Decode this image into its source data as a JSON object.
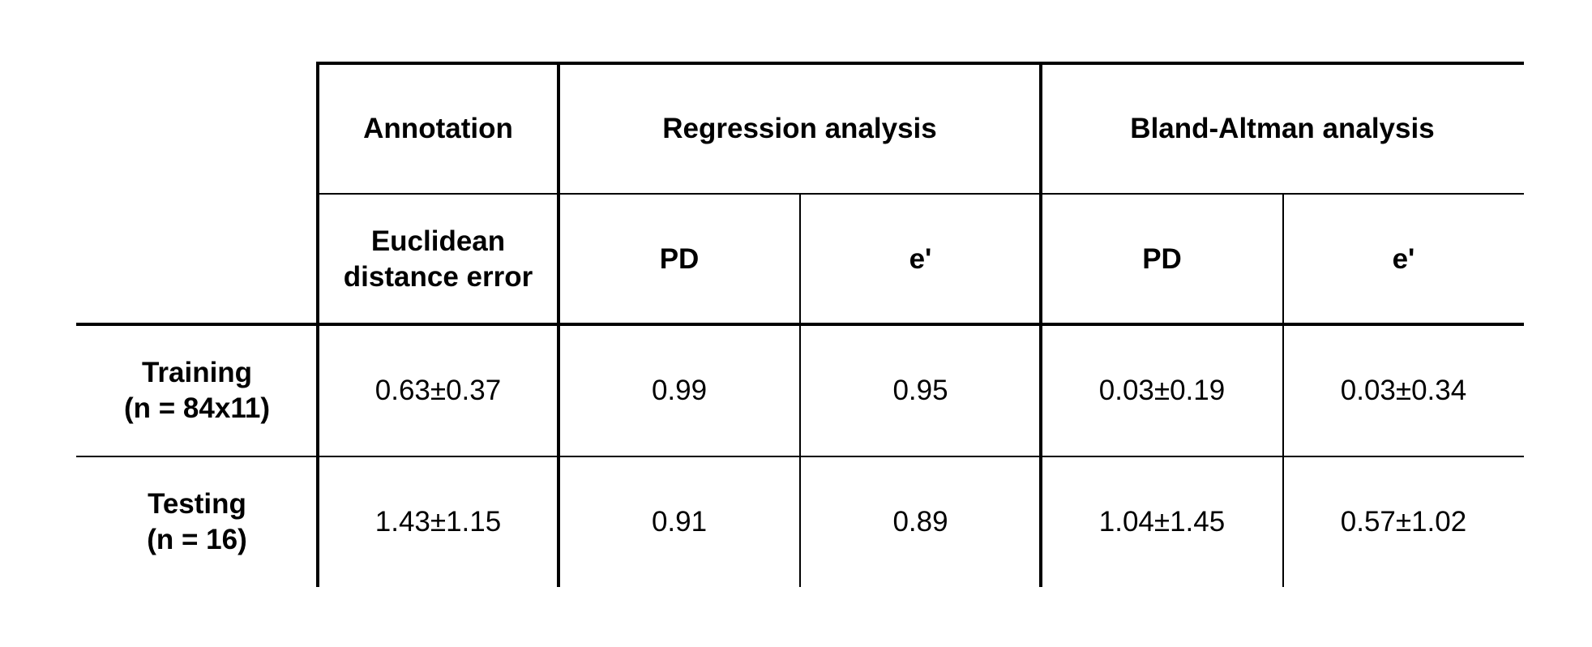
{
  "table": {
    "header": [
      "Annotation",
      "Regression analysis",
      "Bland-Altman analysis"
    ],
    "subheader": [
      [
        "Euclidean",
        "distance error"
      ],
      [
        "PD"
      ],
      [
        "e'"
      ],
      [
        "PD"
      ],
      [
        "e'"
      ]
    ],
    "rows": [
      {
        "label": [
          "Training",
          "(n = 84x11)"
        ],
        "cells": [
          "0.63±0.37",
          "0.99",
          "0.95",
          "0.03±0.19",
          "0.03±0.34"
        ]
      },
      {
        "label": [
          "Testing",
          "(n = 16)"
        ],
        "cells": [
          "1.43±1.15",
          "0.91",
          "0.89",
          "1.04±1.45",
          "0.57±1.02"
        ]
      }
    ]
  }
}
